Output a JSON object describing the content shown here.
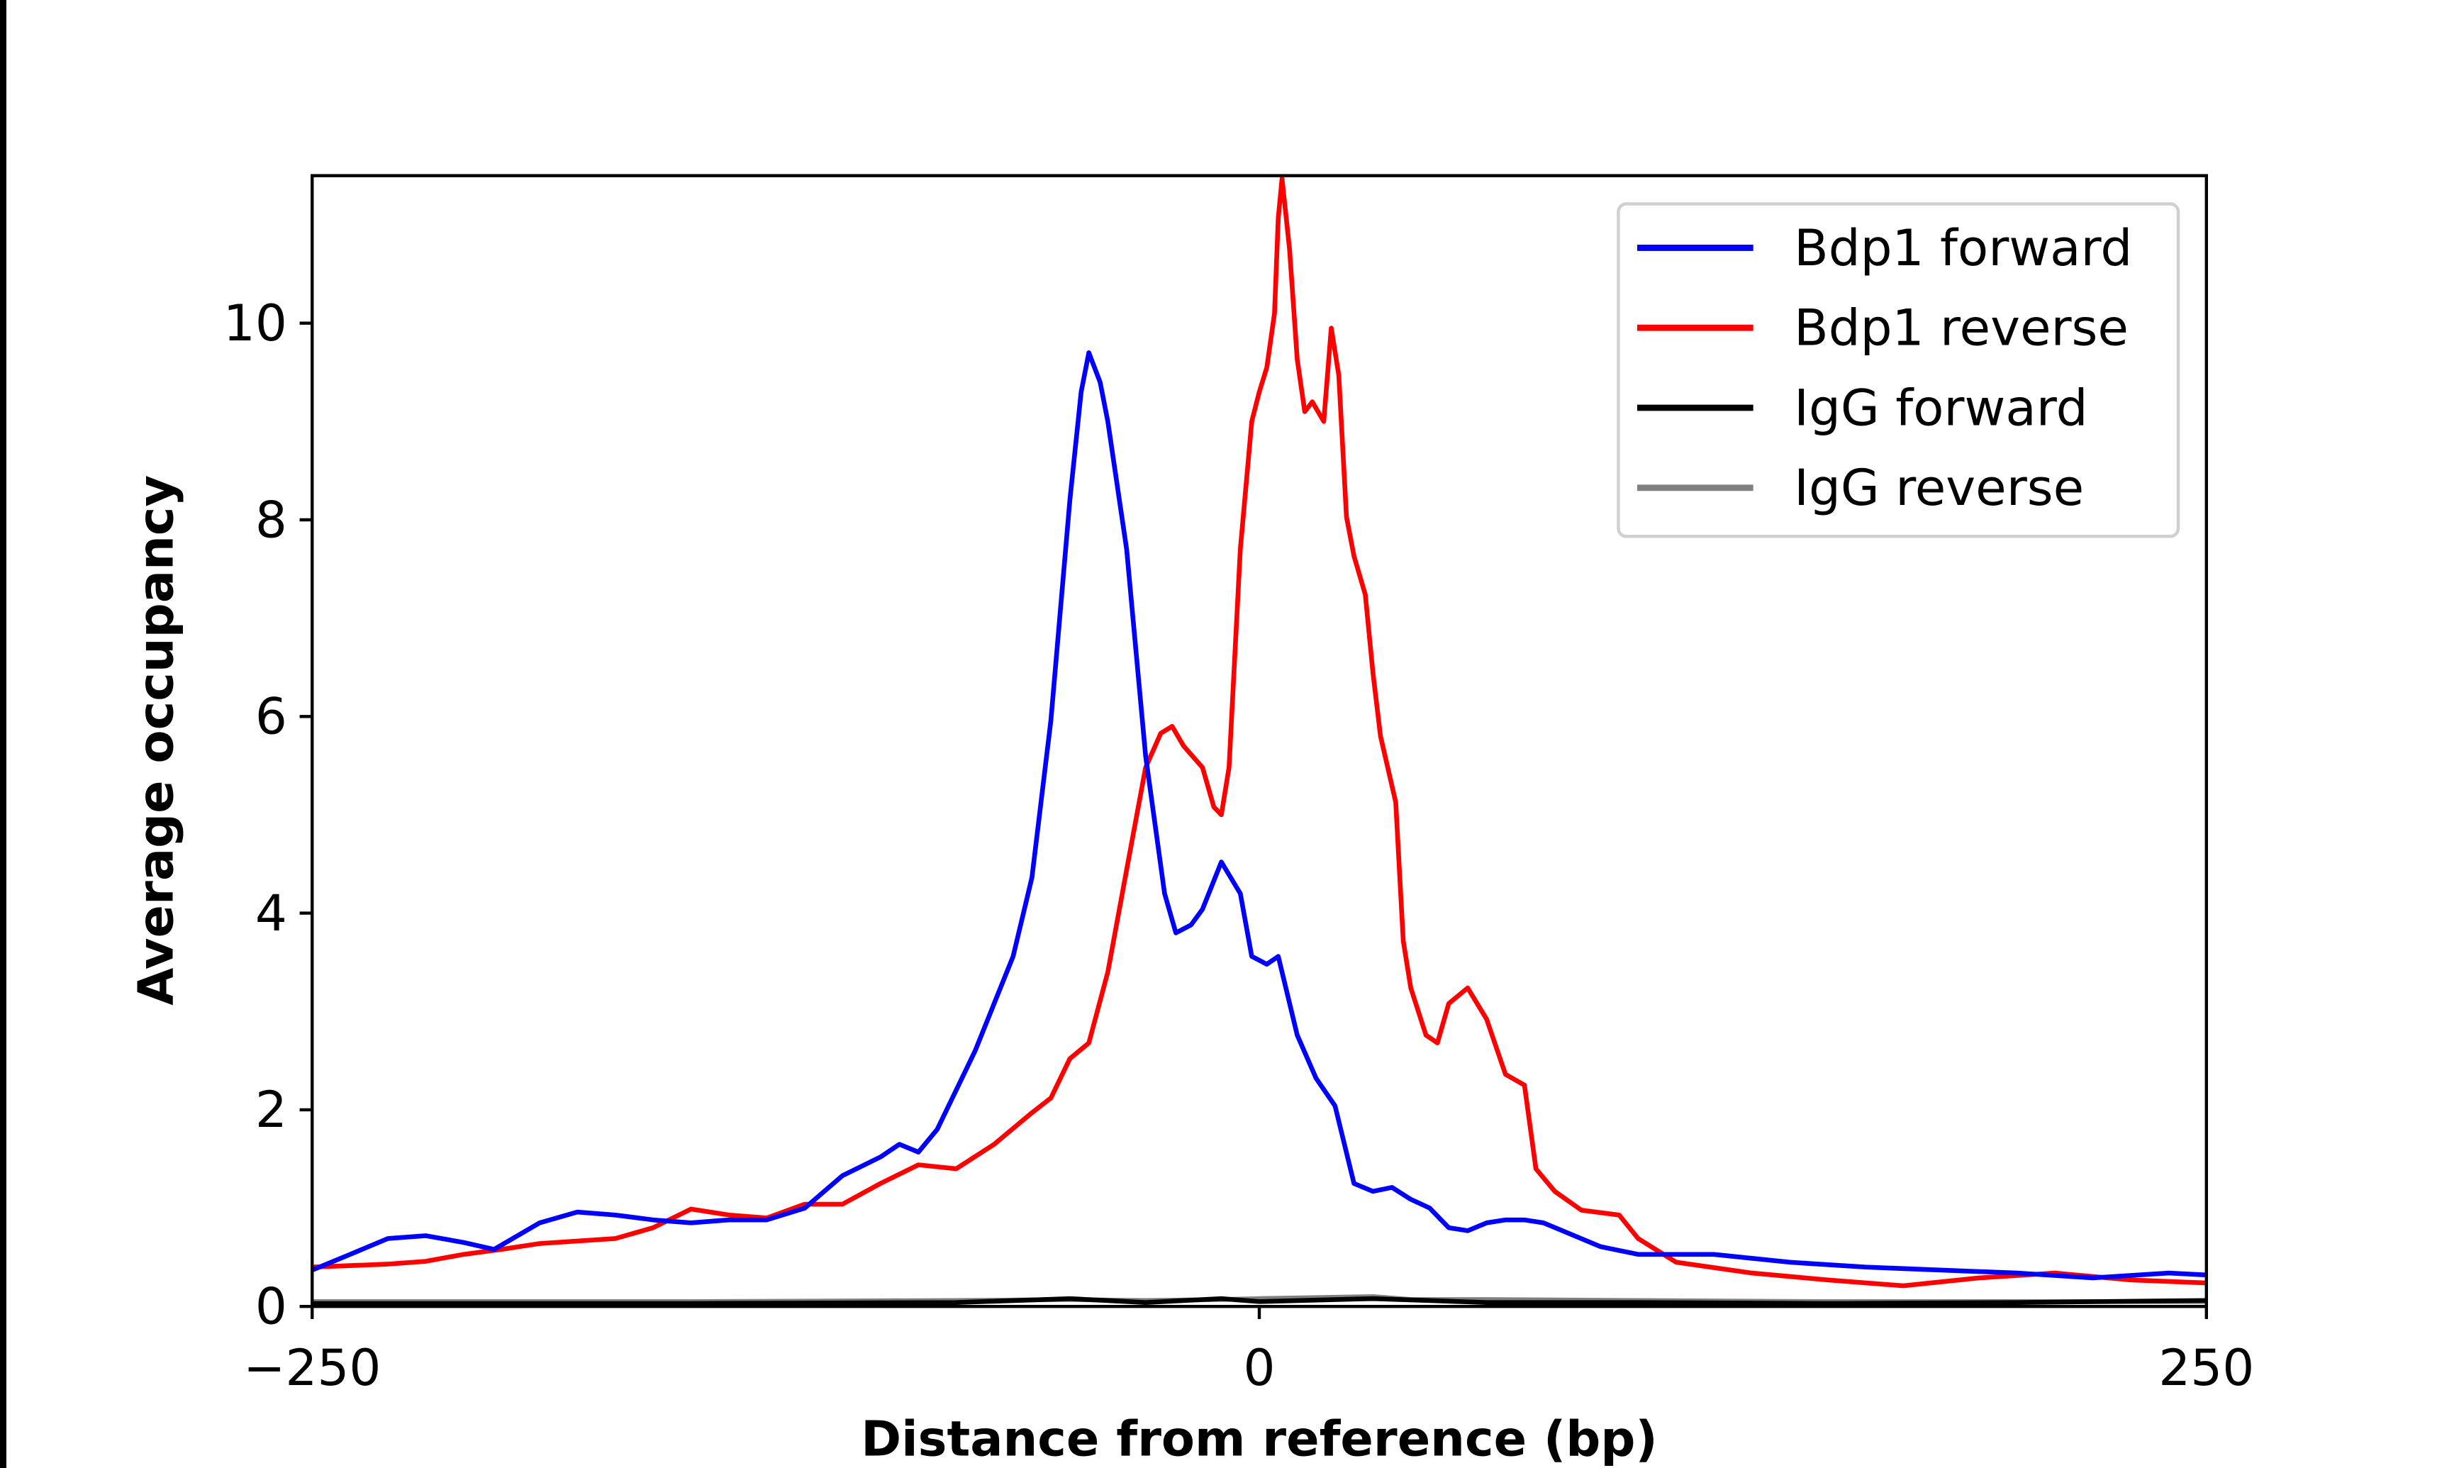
{
  "chart_data": {
    "type": "line",
    "title": "",
    "xlabel": "Distance from reference (bp)",
    "ylabel": "Average occupancy",
    "xlim": [
      -250,
      250
    ],
    "ylim": [
      0,
      11.5
    ],
    "xticks": [
      -250,
      0,
      250
    ],
    "xtick_labels": [
      "−250",
      "0",
      "250"
    ],
    "yticks": [
      0,
      2,
      4,
      6,
      8,
      10
    ],
    "ytick_labels": [
      "0",
      "2",
      "4",
      "6",
      "8",
      "10"
    ],
    "grid": false,
    "legend_position": "top-right",
    "series": [
      {
        "name": "Bdp1 forward",
        "color": "#0000ff",
        "x": [
          -250,
          -240,
          -230,
          -220,
          -210,
          -202,
          -190,
          -180,
          -170,
          -160,
          -150,
          -140,
          -130,
          -120,
          -110,
          -100,
          -95,
          -90,
          -85,
          -80,
          -75,
          -70,
          -65,
          -60,
          -55,
          -50,
          -47,
          -45,
          -42,
          -40,
          -35,
          -30,
          -25,
          -22,
          -18,
          -15,
          -10,
          -5,
          -2,
          2,
          5,
          10,
          15,
          20,
          25,
          30,
          35,
          40,
          45,
          50,
          55,
          60,
          65,
          70,
          75,
          80,
          90,
          100,
          120,
          140,
          160,
          180,
          200,
          220,
          240,
          250
        ],
        "y": [
          0.37,
          0.53,
          0.69,
          0.72,
          0.65,
          0.58,
          0.85,
          0.96,
          0.93,
          0.88,
          0.85,
          0.88,
          0.88,
          1.0,
          1.33,
          1.52,
          1.65,
          1.57,
          1.8,
          2.2,
          2.6,
          3.08,
          3.56,
          4.36,
          5.96,
          8.2,
          9.3,
          9.7,
          9.4,
          9.0,
          7.7,
          5.6,
          4.2,
          3.8,
          3.88,
          4.04,
          4.52,
          4.2,
          3.56,
          3.48,
          3.56,
          2.76,
          2.32,
          2.04,
          1.25,
          1.17,
          1.21,
          1.09,
          1.0,
          0.8,
          0.77,
          0.85,
          0.88,
          0.88,
          0.85,
          0.77,
          0.61,
          0.53,
          0.53,
          0.45,
          0.4,
          0.37,
          0.34,
          0.29,
          0.34,
          0.32
        ]
      },
      {
        "name": "Bdp1 reverse",
        "color": "#ff0000",
        "x": [
          -250,
          -230,
          -220,
          -210,
          -200,
          -190,
          -170,
          -160,
          -150,
          -140,
          -130,
          -120,
          -110,
          -100,
          -90,
          -80,
          -70,
          -60,
          -55,
          -50,
          -45,
          -40,
          -35,
          -30,
          -26,
          -23,
          -20,
          -15,
          -12,
          -10,
          -8,
          -5,
          -2,
          0,
          2,
          4,
          5,
          6,
          8,
          10,
          12,
          14,
          17,
          19,
          21,
          23,
          25,
          28,
          30,
          32,
          36,
          38,
          40,
          44,
          47,
          50,
          55,
          60,
          65,
          70,
          73,
          78,
          85,
          95,
          100,
          110,
          130,
          150,
          170,
          190,
          210,
          230,
          250
        ],
        "y": [
          0.4,
          0.43,
          0.46,
          0.53,
          0.58,
          0.64,
          0.69,
          0.8,
          0.99,
          0.93,
          0.9,
          1.04,
          1.04,
          1.25,
          1.44,
          1.4,
          1.65,
          1.97,
          2.12,
          2.52,
          2.68,
          3.4,
          4.44,
          5.48,
          5.83,
          5.9,
          5.7,
          5.48,
          5.08,
          5.0,
          5.48,
          7.7,
          9.0,
          9.3,
          9.55,
          10.1,
          11.07,
          11.47,
          10.75,
          9.63,
          9.1,
          9.2,
          9.0,
          9.95,
          9.47,
          8.03,
          7.63,
          7.24,
          6.44,
          5.8,
          5.13,
          3.72,
          3.24,
          2.76,
          2.68,
          3.08,
          3.24,
          2.92,
          2.36,
          2.25,
          1.4,
          1.17,
          0.98,
          0.93,
          0.69,
          0.45,
          0.34,
          0.27,
          0.21,
          0.29,
          0.34,
          0.27,
          0.24
        ]
      },
      {
        "name": "IgG forward",
        "color": "#000000",
        "x": [
          -250,
          -150,
          -80,
          -50,
          -30,
          -10,
          0,
          30,
          60,
          100,
          150,
          200,
          250
        ],
        "y": [
          0.03,
          0.03,
          0.04,
          0.08,
          0.04,
          0.08,
          0.05,
          0.08,
          0.04,
          0.04,
          0.03,
          0.04,
          0.06
        ]
      },
      {
        "name": "IgG reverse",
        "color": "#808080",
        "x": [
          -250,
          -150,
          -80,
          -50,
          -30,
          -10,
          0,
          30,
          40,
          60,
          100,
          150,
          200,
          250
        ],
        "y": [
          0.05,
          0.05,
          0.06,
          0.07,
          0.06,
          0.07,
          0.08,
          0.1,
          0.07,
          0.07,
          0.06,
          0.05,
          0.05,
          0.05
        ]
      }
    ]
  }
}
